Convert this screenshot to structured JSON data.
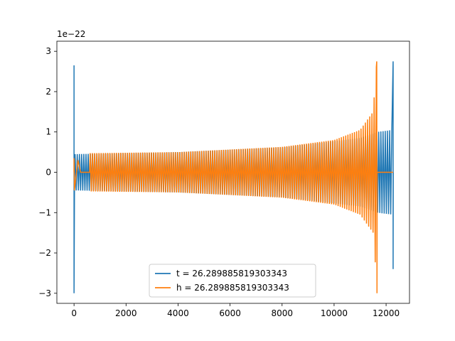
{
  "chart_data": {
    "type": "line",
    "title": "",
    "xlabel": "",
    "ylabel": "",
    "xlim": [
      -660,
      12900
    ],
    "ylim": [
      -3.25,
      3.25
    ],
    "x_ticks": [
      0,
      2000,
      4000,
      6000,
      8000,
      10000,
      12000
    ],
    "y_ticks": [
      -3,
      -2,
      -1,
      0,
      1,
      2,
      3
    ],
    "x_tick_labels": [
      "0",
      "2000",
      "4000",
      "6000",
      "8000",
      "10000",
      "12000"
    ],
    "y_tick_labels": [
      "−3",
      "−2",
      "−1",
      "0",
      "1",
      "2",
      "3"
    ],
    "y_offset_label": "1e−22",
    "grid": false,
    "legend_position": "bottom-center",
    "series": [
      {
        "name": "t = 26.289885819303343",
        "color": "#1f77b4",
        "description_points": {
          "initial_spike": {
            "x": 0,
            "max": 2.65,
            "min": -3.0
          },
          "envelope": [
            [
              0,
              0.45
            ],
            [
              4000,
              0.5
            ],
            [
              8000,
              0.62
            ],
            [
              11000,
              0.85
            ],
            [
              11650,
              1.0
            ],
            [
              12250,
              1.05
            ]
          ],
          "end_spike": {
            "x": 12270,
            "max": 2.75,
            "min": -2.4
          },
          "x_start": 0,
          "x_end": 12270
        }
      },
      {
        "name": "h = 26.289885819303343",
        "color": "#ff7f0e",
        "description_points": {
          "initial_spike": {
            "x": 0,
            "max": 0.35,
            "min": -0.45
          },
          "envelope": [
            [
              50,
              0.47
            ],
            [
              4000,
              0.5
            ],
            [
              8000,
              0.63
            ],
            [
              10000,
              0.8
            ],
            [
              11000,
              1.05
            ],
            [
              11500,
              1.5
            ],
            [
              11640,
              2.75
            ]
          ],
          "end_spike": {
            "x": 11650,
            "max": 2.75,
            "min": -3.0
          },
          "flat_after": [
            11650,
            12270
          ],
          "x_start": 0,
          "x_end": 12270
        }
      }
    ]
  }
}
